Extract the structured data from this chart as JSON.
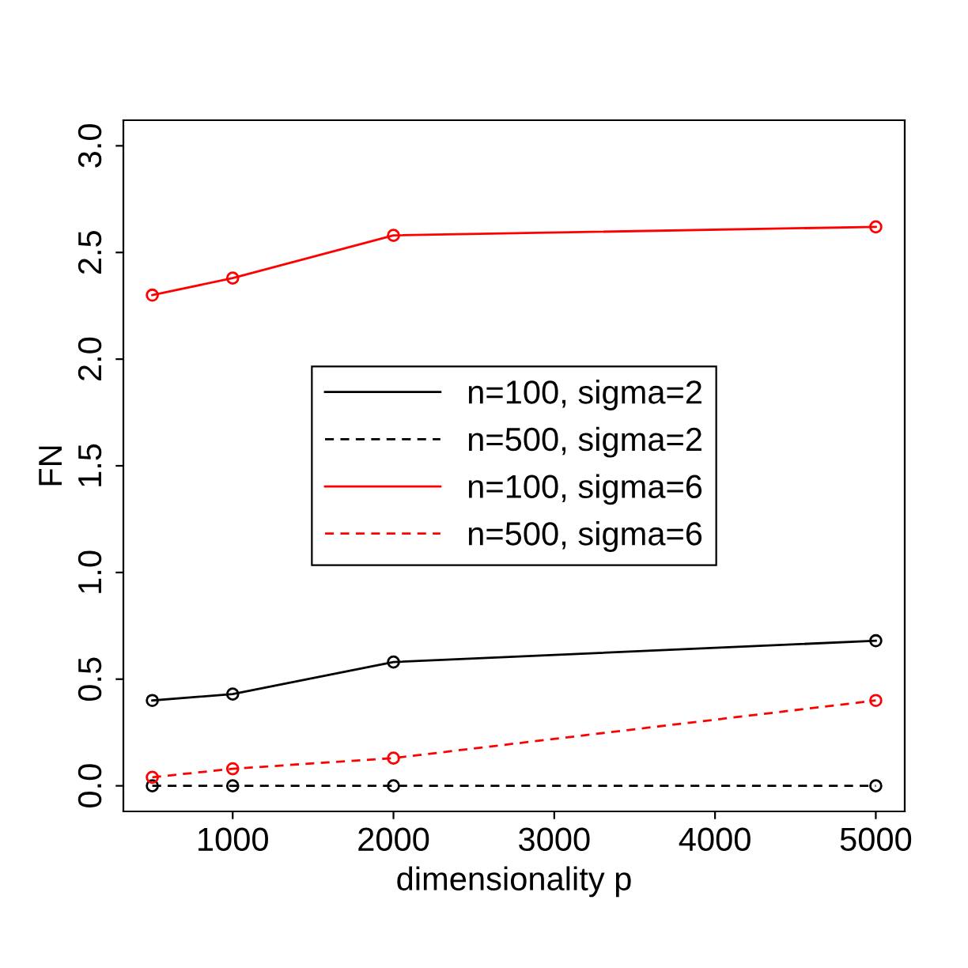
{
  "chart_data": {
    "type": "line",
    "xlabel": "dimensionality p",
    "ylabel": "FN",
    "x": [
      500,
      1000,
      2000,
      5000
    ],
    "series": [
      {
        "name": "n=100, sigma=2",
        "color": "#000000",
        "line_style": "solid",
        "values": [
          0.4,
          0.43,
          0.58,
          0.68
        ]
      },
      {
        "name": "n=500, sigma=2",
        "color": "#000000",
        "line_style": "dashed",
        "values": [
          0,
          0,
          0,
          0
        ]
      },
      {
        "name": "n=100, sigma=6",
        "color": "#ff0000",
        "line_style": "solid",
        "values": [
          2.3,
          2.38,
          2.58,
          2.62
        ]
      },
      {
        "name": "n=500, sigma=6",
        "color": "#ff0000",
        "line_style": "dashed",
        "values": [
          0.04,
          0.08,
          0.13,
          0.4
        ]
      }
    ],
    "xlim": [
      320,
      5180
    ],
    "ylim": [
      -0.12,
      3.12
    ],
    "xticks": [
      1000,
      2000,
      3000,
      4000,
      5000
    ],
    "yticks": [
      {
        "value": 0,
        "label": "0.0"
      },
      {
        "value": 0.5,
        "label": "0.5"
      },
      {
        "value": 1,
        "label": "1.0"
      },
      {
        "value": 1.5,
        "label": "1.5"
      },
      {
        "value": 2,
        "label": "2.0"
      },
      {
        "value": 2.5,
        "label": "2.5"
      },
      {
        "value": 3,
        "label": "3.0"
      }
    ],
    "marker": "circle",
    "grid": false,
    "legend": "center"
  }
}
